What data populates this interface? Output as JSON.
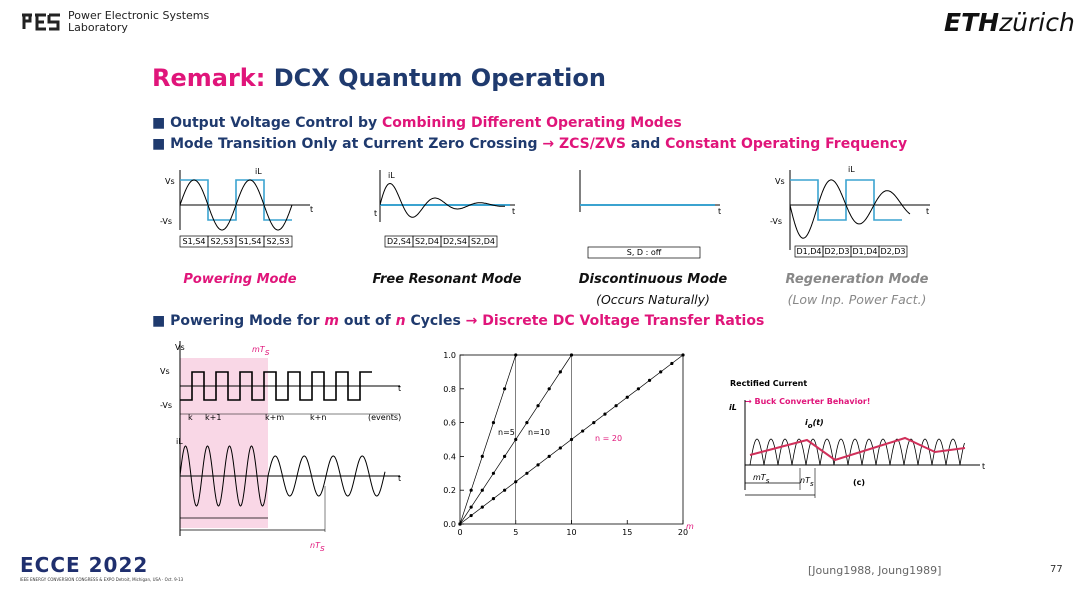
{
  "header": {
    "lab": [
      "Power Electronic Systems",
      "Laboratory"
    ],
    "logo": "ETH",
    "logo_city": "zürich"
  },
  "title": {
    "prefix": "Remark:",
    "main": "DCX Quantum Operation"
  },
  "bullets": [
    [
      "Output Voltage Control by ",
      "Combining Different Operating Modes"
    ],
    [
      "Mode Transition Only at Current Zero Crossing ",
      "→ ZCS/ZVS",
      " and ",
      "Constant Operating Frequency"
    ]
  ],
  "modes": [
    {
      "name": "Powering Mode",
      "switches": [
        "S1,S4",
        "S2,S3",
        "S1,S4",
        "S2,S3"
      ],
      "labels": [
        "Vs",
        "-Vs",
        "iL",
        "t"
      ]
    },
    {
      "name": "Free Resonant Mode",
      "switches": [
        "D2,S4",
        "S2,D4",
        "D2,S4",
        "S2,D4"
      ],
      "labels": [
        "iL",
        "t",
        "t"
      ]
    },
    {
      "name": "Discontinuous Mode",
      "note": "(Occurs Naturally)",
      "switches": [
        "S, D : off"
      ],
      "labels": [
        "t"
      ]
    },
    {
      "name": "Regeneration Mode",
      "note": "(Low Inp. Power Fact.)",
      "switches": [
        "D1,D4",
        "D2,D3",
        "D1,D4",
        "D2,D3"
      ],
      "labels": [
        "Vs",
        "-Vs",
        "iL",
        "t"
      ]
    }
  ],
  "bullet3": [
    "Powering Mode for ",
    "m",
    " out of ",
    "n",
    " Cycles ",
    "→ Discrete DC Voltage Transfer Ratios"
  ],
  "left_figure": {
    "mTs": [
      "mT",
      "s"
    ],
    "nTs": [
      "nT",
      "s"
    ],
    "labels": [
      "Vs",
      "Vs",
      "-Vs",
      "t",
      "iL",
      "t",
      "k",
      "k+1",
      "k+m",
      "k+n",
      "(events)"
    ]
  },
  "plot": {
    "yticks": [
      "0.0",
      "0.2",
      "0.4",
      "0.6",
      "0.8",
      "1.0"
    ],
    "xticks": [
      "0",
      "5",
      "10",
      "15",
      "20"
    ],
    "curves": [
      "n=5",
      "n=10",
      "n = 20"
    ],
    "xlabel": "m"
  },
  "right_figure": {
    "title": "Rectified Current",
    "subtitle": "→ Buck Converter Behavior!",
    "axis": "iL",
    "io": [
      "i",
      "o",
      "(t)"
    ],
    "mTs": [
      "mT",
      "s"
    ],
    "nTs": [
      "nT",
      "s"
    ],
    "tag": "(c)",
    "t": "t"
  },
  "footer": {
    "conference": "ECCE 2022",
    "conference_sub": "IEEE ENERGY CONVERSION CONGRESS & EXPO  Detroit, Michigan, USA · Oct. 9-13",
    "citation": "[Joung1988, Joung1989]",
    "page": "77"
  }
}
